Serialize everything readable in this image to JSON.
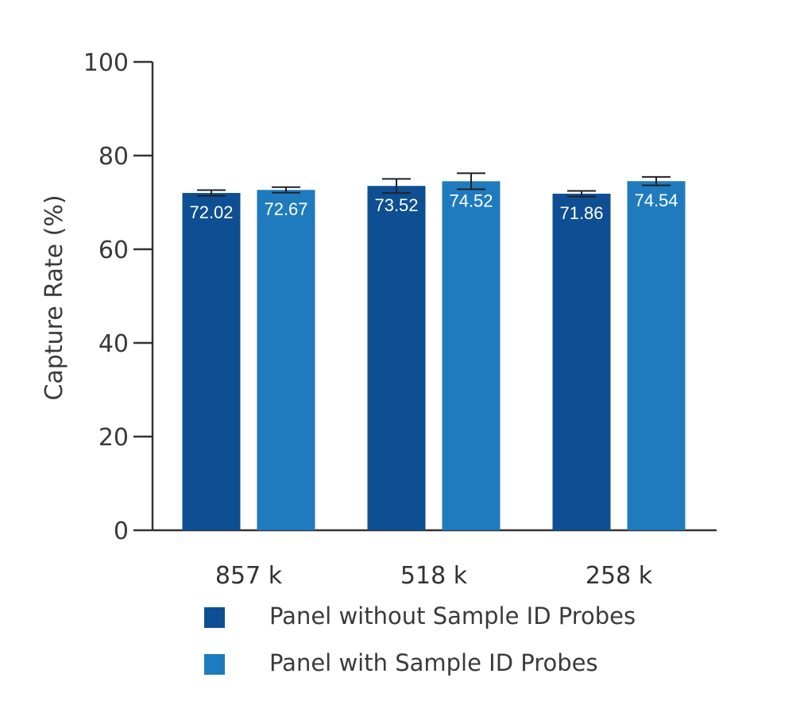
{
  "chart_data": {
    "type": "bar",
    "ylabel": "Capture Rate (%)",
    "ylim": [
      0,
      100
    ],
    "yticks": [
      "0",
      "20",
      "40",
      "60",
      "80",
      "100"
    ],
    "categories": [
      "857 k",
      "518 k",
      "258 k"
    ],
    "series": [
      {
        "name": "Panel without Sample ID Probes",
        "color": "#0d4f92",
        "values": [
          72.02,
          73.52,
          71.86
        ],
        "labels": [
          "72.02",
          "73.52",
          "71.86"
        ],
        "error": [
          0.6,
          1.5,
          0.6
        ]
      },
      {
        "name": "Panel with Sample ID Probes",
        "color": "#1f7bbd",
        "values": [
          72.67,
          74.52,
          74.54
        ],
        "labels": [
          "72.67",
          "74.52",
          "74.54"
        ],
        "error": [
          0.6,
          1.7,
          0.9
        ]
      }
    ],
    "legend_position": "bottom"
  }
}
